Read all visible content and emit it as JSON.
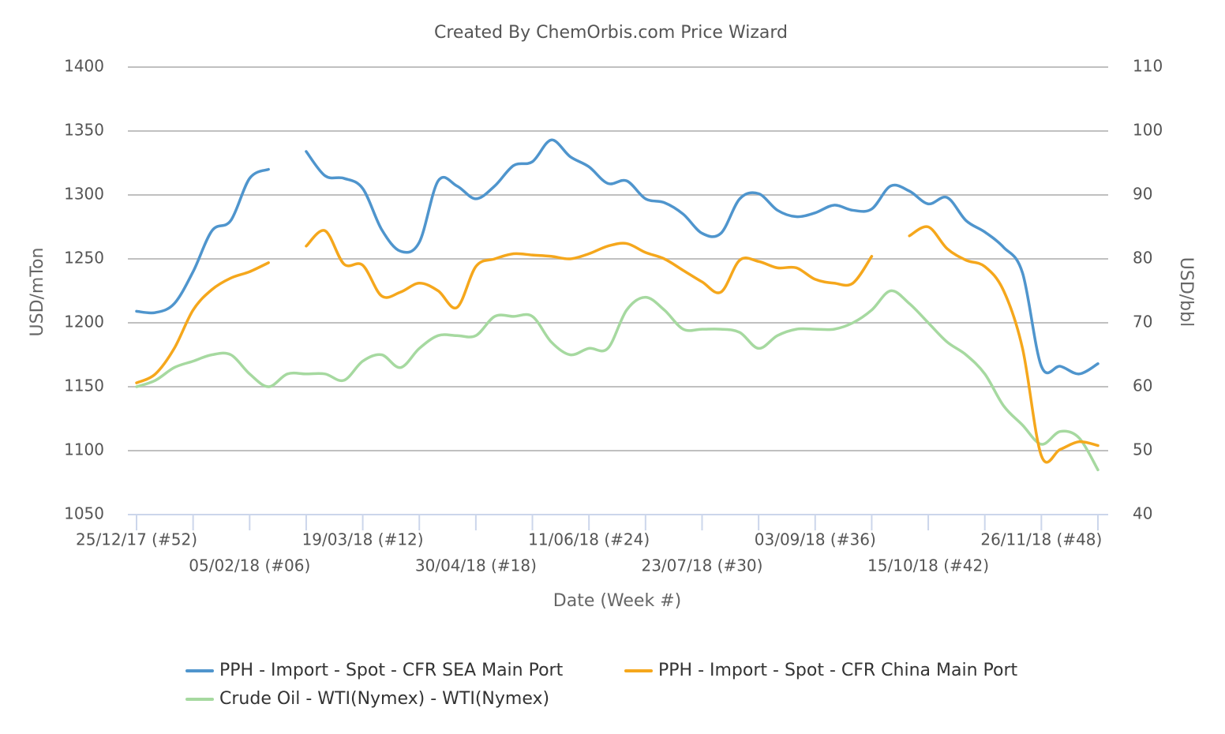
{
  "chart_data": {
    "type": "line",
    "title": "Created By ChemOrbis.com Price Wizard",
    "x_label": "Date (Week #)",
    "y_label": "USD/mTon",
    "y2_label": "USD/bbl",
    "categories": [
      "25/12/17 (#52)",
      null,
      null,
      null,
      null,
      null,
      "05/02/18 (#06)",
      null,
      null,
      null,
      null,
      null,
      "19/03/18 (#12)",
      null,
      null,
      null,
      null,
      null,
      "30/04/18 (#18)",
      null,
      null,
      null,
      null,
      null,
      "11/06/18 (#24)",
      null,
      null,
      null,
      null,
      null,
      "23/07/18 (#30)",
      null,
      null,
      null,
      null,
      null,
      "03/09/18 (#36)",
      null,
      null,
      null,
      null,
      null,
      "15/10/18 (#42)",
      null,
      null,
      null,
      null,
      null,
      "26/11/18 (#48)",
      null,
      null,
      null
    ],
    "series": [
      {
        "name": "PPH - Import - Spot - CFR SEA Main Port",
        "color": "#4f95cd",
        "values": [
          1209,
          1208,
          1215,
          1240,
          1272,
          1280,
          1313,
          1320,
          null,
          1334,
          1315,
          1313,
          1305,
          1273,
          1256,
          1263,
          1311,
          1307,
          1297,
          1307,
          1323,
          1326,
          1343,
          1330,
          1322,
          1309,
          1311,
          1297,
          1294,
          1285,
          1270,
          1270,
          1297,
          1301,
          1288,
          1283,
          1286,
          1292,
          1288,
          1289,
          1307,
          1303,
          1293,
          1298,
          1280,
          1271,
          1259,
          1239,
          1166,
          1166,
          1160,
          1168
        ]
      },
      {
        "name": "PPH - Import - Spot - CFR China Main Port",
        "color": "#f5a71c",
        "values": [
          1153,
          1160,
          1180,
          1210,
          1226,
          1235,
          1240,
          1247,
          null,
          1260,
          1272,
          1246,
          1245,
          1221,
          1224,
          1231,
          1225,
          1212,
          1244,
          1250,
          1254,
          1253,
          1252,
          1250,
          1254,
          1260,
          1262,
          1255,
          1250,
          1241,
          1232,
          1224,
          1249,
          1248,
          1243,
          1243,
          1234,
          1231,
          1231,
          1252,
          null,
          1268,
          1275,
          1258,
          1249,
          1244,
          1225,
          1180,
          1096,
          1101,
          1107,
          1104
        ]
      },
      {
        "name": "Crude Oil - WTI(Nymex) - WTI(Nymex)",
        "color": "#a6d9a0",
        "axis": "y2",
        "values": [
          60,
          61,
          63,
          64,
          65,
          65,
          62,
          60,
          62,
          62,
          62,
          61,
          64,
          65,
          63,
          66,
          68,
          68,
          68,
          71,
          71,
          71,
          67,
          65,
          66,
          66,
          72,
          74,
          72,
          69,
          69,
          69,
          68.5,
          66,
          68,
          69,
          69,
          69,
          70,
          72,
          75,
          73,
          70,
          67,
          65,
          62,
          57,
          54,
          51,
          53,
          52,
          47
        ]
      }
    ],
    "ylim": [
      1050,
      1400
    ],
    "yticks": [
      1050,
      1100,
      1150,
      1200,
      1250,
      1300,
      1350,
      1400
    ],
    "y2lim": [
      40,
      110
    ],
    "y2ticks": [
      40,
      50,
      60,
      70,
      80,
      90,
      100,
      110
    ],
    "grid": true,
    "legend": "bottom"
  }
}
